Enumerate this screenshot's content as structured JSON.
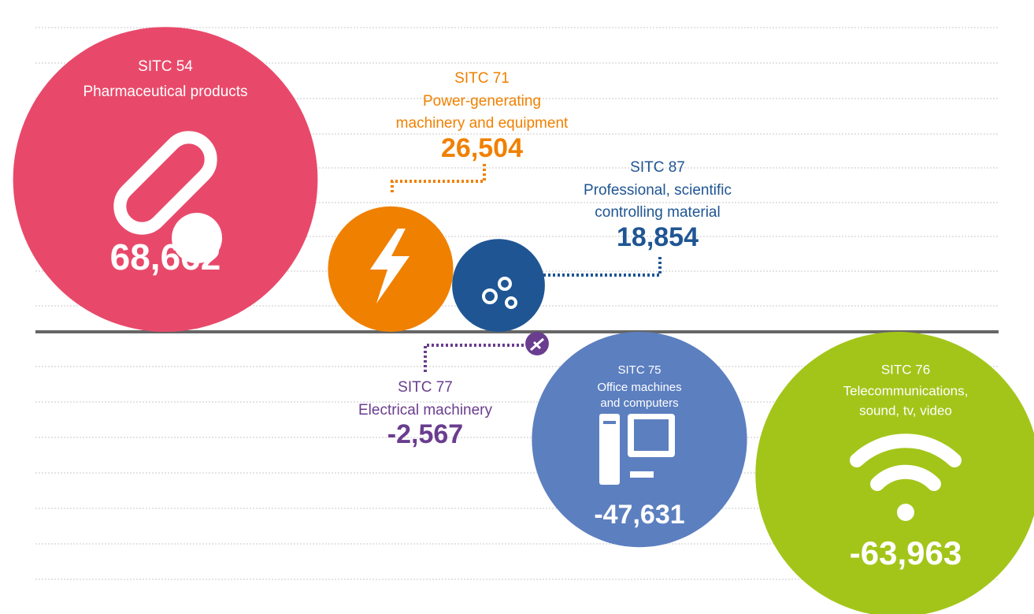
{
  "chart_data": {
    "type": "bubble",
    "codes": [
      "SITC 54",
      "SITC 71",
      "SITC 87",
      "SITC 77",
      "SITC 75",
      "SITC 76"
    ],
    "names": [
      [
        "Pharmaceutical products"
      ],
      [
        "Power-generating",
        "machinery and equipment"
      ],
      [
        "Professional, scientific",
        "controlling material"
      ],
      [
        "Electrical machinery"
      ],
      [
        "Office machines",
        "and computers"
      ],
      [
        "Telecommunications,",
        "sound, tv, video"
      ]
    ],
    "values": [
      68662,
      26504,
      18854,
      -2567,
      -47631,
      -63963
    ],
    "value_labels": [
      "68,662",
      "26,504",
      "18,854",
      "-2,567",
      "-47,631",
      "-63,963"
    ],
    "colors": [
      "#e8496a",
      "#f08000",
      "#1f5593",
      "#6a3d8f",
      "#5c7fc0",
      "#a3c51a"
    ]
  }
}
